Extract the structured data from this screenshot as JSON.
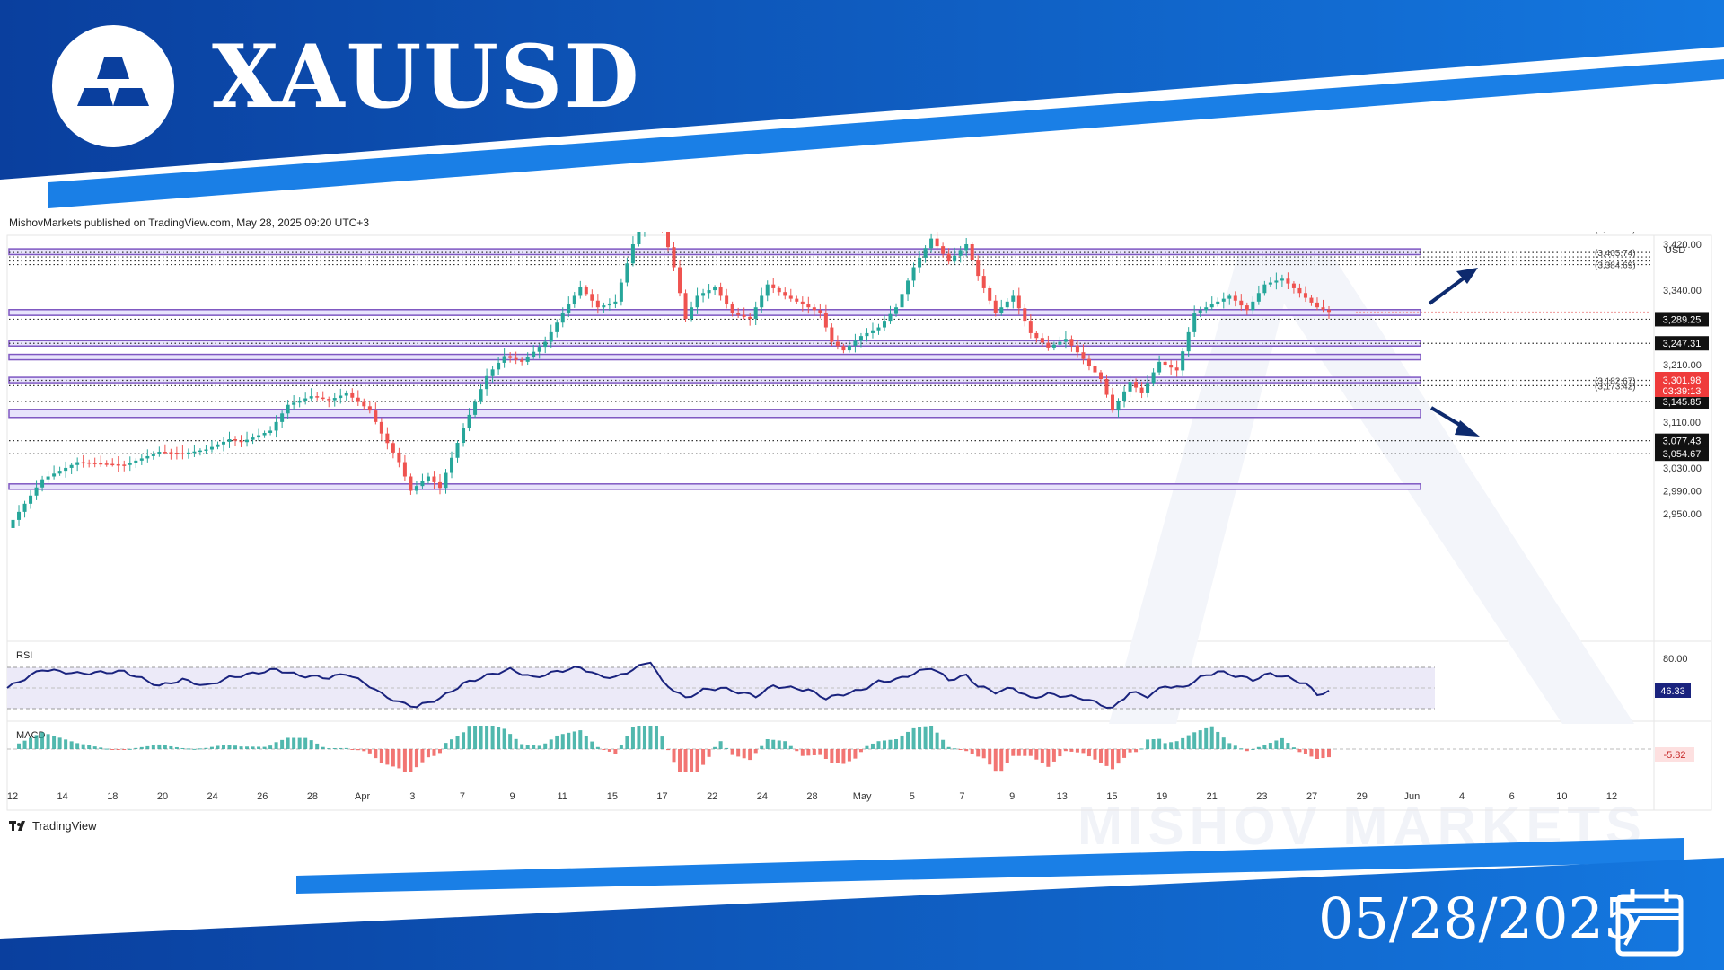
{
  "header": {
    "symbol": "XAUUSD",
    "logo_icon": "gold-bars-icon",
    "published_note": "MishovMarkets published on TradingView.com, May 28, 2025 09:20 UTC+3"
  },
  "footer": {
    "date": "05/28/2025",
    "calendar_icon": "calendar-icon",
    "tradingview_label": "TradingView",
    "watermark": "MISHOV MARKETS"
  },
  "colors": {
    "banner_dark": "#0a3f9e",
    "banner_light": "#1478e0",
    "zone_fill": "#e7e3fb",
    "zone_border": "#7e57c2",
    "candle_up": "#26a69a",
    "candle_down": "#ef5350",
    "rsi_line": "#1a237e",
    "arrow": "#0d2a6e"
  },
  "chart_data": {
    "type": "candlestick",
    "currency": "USD",
    "price_axis_labels": [
      "3,420.00",
      "3,340.00",
      "3,210.00",
      "3,110.00",
      "3,030.00",
      "2,990.00",
      "2,950.00"
    ],
    "price_axis_values": [
      3420,
      3340,
      3210,
      3110,
      3030,
      2990,
      2950
    ],
    "ylim": [
      2930,
      3470
    ],
    "date_axis_labels": [
      "12",
      "14",
      "18",
      "20",
      "24",
      "26",
      "28",
      "Apr",
      "3",
      "7",
      "9",
      "11",
      "15",
      "17",
      "22",
      "24",
      "28",
      "May",
      "5",
      "7",
      "9",
      "13",
      "15",
      "19",
      "21",
      "23",
      "27",
      "29",
      "Jun",
      "4",
      "6",
      "10",
      "12"
    ],
    "current_price": {
      "value": "3,301.98",
      "countdown": "03:39:13"
    },
    "level_tags": [
      {
        "label": "3,289.25",
        "value": 3289.25
      },
      {
        "label": "3,247.31",
        "value": 3247.31
      },
      {
        "label": "3,145.85",
        "value": 3145.85
      },
      {
        "label": "3,077.43",
        "value": 3077.43
      },
      {
        "label": "3,054.67",
        "value": 3054.67
      }
    ],
    "level_notes": [
      {
        "label": "(3,448.82)",
        "value": 3448.82
      },
      {
        "label": "(3,405.74)",
        "value": 3405.74
      },
      {
        "label": "(3,384.69)",
        "value": 3384.69
      },
      {
        "label": "(3,182.67)",
        "value": 3182.67
      },
      {
        "label": "(3,173.42)",
        "value": 3173.42
      }
    ],
    "dotted_levels": [
      3448.82,
      3405.74,
      3398,
      3391,
      3384.69,
      3289.25,
      3247.31,
      3182.67,
      3173.42,
      3145.85,
      3077.43,
      3054.67
    ],
    "zones": [
      [
        3490,
        3500
      ],
      [
        3402,
        3412
      ],
      [
        3296,
        3306
      ],
      [
        3244,
        3252
      ],
      [
        3220,
        3228
      ],
      [
        3180,
        3188
      ],
      [
        3118,
        3132
      ],
      [
        2994,
        3002
      ]
    ],
    "price_path": [
      [
        0,
        2925
      ],
      [
        6,
        3010
      ],
      [
        12,
        3040
      ],
      [
        20,
        3035
      ],
      [
        26,
        3058
      ],
      [
        30,
        3055
      ],
      [
        34,
        3062
      ],
      [
        38,
        3080
      ],
      [
        40,
        3075
      ],
      [
        45,
        3095
      ],
      [
        48,
        3140
      ],
      [
        52,
        3155
      ],
      [
        55,
        3148
      ],
      [
        58,
        3160
      ],
      [
        62,
        3130
      ],
      [
        64,
        3090
      ],
      [
        67,
        3040
      ],
      [
        69,
        2990
      ],
      [
        72,
        3015
      ],
      [
        74,
        2995
      ],
      [
        78,
        3100
      ],
      [
        82,
        3190
      ],
      [
        85,
        3225
      ],
      [
        88,
        3215
      ],
      [
        92,
        3250
      ],
      [
        95,
        3300
      ],
      [
        98,
        3345
      ],
      [
        101,
        3310
      ],
      [
        104,
        3320
      ],
      [
        107,
        3420
      ],
      [
        110,
        3495
      ],
      [
        112,
        3450
      ],
      [
        114,
        3380
      ],
      [
        116,
        3290
      ],
      [
        118,
        3330
      ],
      [
        121,
        3345
      ],
      [
        124,
        3300
      ],
      [
        127,
        3290
      ],
      [
        130,
        3350
      ],
      [
        133,
        3330
      ],
      [
        136,
        3315
      ],
      [
        139,
        3300
      ],
      [
        141,
        3250
      ],
      [
        143,
        3235
      ],
      [
        146,
        3260
      ],
      [
        149,
        3275
      ],
      [
        152,
        3310
      ],
      [
        155,
        3380
      ],
      [
        158,
        3430
      ],
      [
        161,
        3390
      ],
      [
        164,
        3420
      ],
      [
        166,
        3365
      ],
      [
        169,
        3300
      ],
      [
        172,
        3330
      ],
      [
        175,
        3265
      ],
      [
        178,
        3240
      ],
      [
        181,
        3255
      ],
      [
        184,
        3220
      ],
      [
        187,
        3185
      ],
      [
        189,
        3130
      ],
      [
        192,
        3180
      ],
      [
        194,
        3160
      ],
      [
        197,
        3215
      ],
      [
        200,
        3200
      ],
      [
        203,
        3300
      ],
      [
        206,
        3315
      ],
      [
        209,
        3330
      ],
      [
        212,
        3305
      ],
      [
        215,
        3350
      ],
      [
        218,
        3360
      ],
      [
        221,
        3335
      ],
      [
        224,
        3310
      ],
      [
        226,
        3301.98
      ]
    ],
    "rsi": {
      "title": "RSI",
      "axis_label": "80.00",
      "current_label": "46.33",
      "current_value": 46.33,
      "upper_band": 70,
      "lower_band": 30,
      "path": [
        [
          0,
          50
        ],
        [
          6,
          68
        ],
        [
          12,
          64
        ],
        [
          20,
          66
        ],
        [
          26,
          52
        ],
        [
          30,
          58
        ],
        [
          34,
          52
        ],
        [
          38,
          60
        ],
        [
          42,
          64
        ],
        [
          46,
          68
        ],
        [
          50,
          62
        ],
        [
          55,
          60
        ],
        [
          58,
          64
        ],
        [
          62,
          52
        ],
        [
          64,
          44
        ],
        [
          67,
          36
        ],
        [
          70,
          32
        ],
        [
          74,
          40
        ],
        [
          78,
          54
        ],
        [
          82,
          62
        ],
        [
          86,
          68
        ],
        [
          90,
          60
        ],
        [
          94,
          66
        ],
        [
          98,
          70
        ],
        [
          101,
          62
        ],
        [
          104,
          60
        ],
        [
          107,
          68
        ],
        [
          110,
          76
        ],
        [
          112,
          56
        ],
        [
          114,
          48
        ],
        [
          116,
          40
        ],
        [
          119,
          48
        ],
        [
          122,
          50
        ],
        [
          125,
          46
        ],
        [
          128,
          42
        ],
        [
          131,
          52
        ],
        [
          134,
          50
        ],
        [
          137,
          48
        ],
        [
          140,
          40
        ],
        [
          143,
          44
        ],
        [
          146,
          48
        ],
        [
          149,
          56
        ],
        [
          152,
          58
        ],
        [
          155,
          64
        ],
        [
          158,
          70
        ],
        [
          161,
          58
        ],
        [
          164,
          62
        ],
        [
          166,
          52
        ],
        [
          169,
          46
        ],
        [
          172,
          50
        ],
        [
          175,
          40
        ],
        [
          178,
          44
        ],
        [
          181,
          42
        ],
        [
          184,
          40
        ],
        [
          187,
          34
        ],
        [
          189,
          30
        ],
        [
          192,
          46
        ],
        [
          195,
          42
        ],
        [
          198,
          52
        ],
        [
          201,
          50
        ],
        [
          204,
          60
        ],
        [
          207,
          66
        ],
        [
          210,
          62
        ],
        [
          213,
          58
        ],
        [
          216,
          64
        ],
        [
          219,
          60
        ],
        [
          222,
          54
        ],
        [
          224,
          44
        ],
        [
          226,
          46.33
        ]
      ]
    },
    "macd": {
      "title": "MACD",
      "current_label": "-5.82",
      "current_value": -5.82
    },
    "grid": false,
    "legend": "none"
  }
}
